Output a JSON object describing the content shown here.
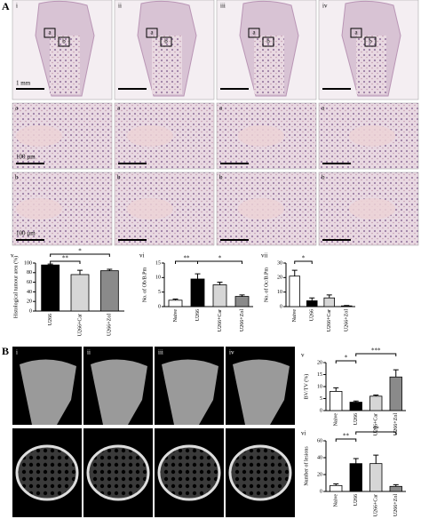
{
  "figure": {
    "panel_labels": [
      "A",
      "B"
    ],
    "columns": [
      "i",
      "ii",
      "iii",
      "iv"
    ],
    "regions": [
      "a",
      "b"
    ],
    "scale_bars": [
      "1 mm",
      "100 µm"
    ]
  },
  "chart_data": [
    {
      "type": "bar",
      "title": "v",
      "ylabel": "Histological tumour area (%)",
      "categories": [
        "U266",
        "U266+Car",
        "U266+Zol"
      ],
      "values": [
        96,
        76,
        84
      ],
      "errors": [
        2,
        9,
        3
      ],
      "colors": [
        "#000000",
        "#d6d6d6",
        "#8a8a8a"
      ],
      "ylim": [
        0,
        100
      ],
      "yticks": [
        0,
        20,
        40,
        60,
        80,
        100
      ],
      "annotations": [
        "**",
        "*"
      ]
    },
    {
      "type": "bar",
      "title": "vi",
      "ylabel": "No. of Ob/B.Pm",
      "categories": [
        "Naive",
        "U266",
        "U266+Car",
        "U266+Zol"
      ],
      "values": [
        2.2,
        9.5,
        7.5,
        3.5
      ],
      "errors": [
        0.4,
        1.8,
        0.9,
        0.5
      ],
      "colors": [
        "#ffffff",
        "#000000",
        "#d6d6d6",
        "#8a8a8a"
      ],
      "ylim": [
        0,
        15
      ],
      "yticks": [
        0,
        5,
        10,
        15
      ],
      "annotations": [
        "**",
        "*"
      ]
    },
    {
      "type": "bar",
      "title": "vii",
      "ylabel": "No. of Oc/B.Pm",
      "categories": [
        "Naive",
        "U266",
        "U266+Car",
        "U266+Zol"
      ],
      "values": [
        21,
        4,
        6,
        0.5
      ],
      "errors": [
        4,
        2,
        2,
        0.3
      ],
      "colors": [
        "#ffffff",
        "#000000",
        "#d6d6d6",
        "#8a8a8a"
      ],
      "ylim": [
        0,
        30
      ],
      "yticks": [
        0,
        10,
        20,
        30
      ],
      "annotations": [
        "*"
      ]
    },
    {
      "type": "bar",
      "title": "v",
      "ylabel": "BV/TV (%)",
      "categories": [
        "Naive",
        "U266",
        "U266+Car",
        "U266+Zol"
      ],
      "values": [
        8,
        3.5,
        6,
        14
      ],
      "errors": [
        1.5,
        0.5,
        0.5,
        3
      ],
      "colors": [
        "#ffffff",
        "#000000",
        "#d6d6d6",
        "#8a8a8a"
      ],
      "ylim": [
        0,
        20
      ],
      "yticks": [
        0,
        5,
        10,
        15,
        20
      ],
      "annotations": [
        "*",
        "***"
      ]
    },
    {
      "type": "bar",
      "title": "vi",
      "ylabel": "Number of lesions",
      "categories": [
        "Naive",
        "U266",
        "U266+Car",
        "U266+Zol"
      ],
      "values": [
        7,
        33,
        33,
        6
      ],
      "errors": [
        2,
        6,
        10,
        2
      ],
      "colors": [
        "#ffffff",
        "#000000",
        "#d6d6d6",
        "#8a8a8a"
      ],
      "ylim": [
        0,
        60
      ],
      "yticks": [
        0,
        20,
        40,
        60
      ],
      "annotations": [
        "**",
        "**"
      ]
    }
  ]
}
